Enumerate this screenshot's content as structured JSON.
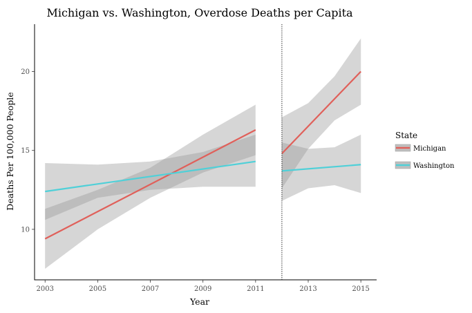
{
  "chart_data": {
    "type": "line",
    "title": "Michigan vs. Washington, Overdose Deaths per Capita",
    "xlabel": "Year",
    "ylabel": "Deaths Per 100,000 People",
    "xlim": [
      2002.6,
      2015.6
    ],
    "ylim": [
      6.8,
      23.0
    ],
    "x_ticks": [
      2003,
      2005,
      2007,
      2009,
      2011,
      2013,
      2015
    ],
    "y_ticks": [
      10,
      15,
      20
    ],
    "vline_x": 2012,
    "grid": false,
    "legend": {
      "title": "State",
      "position": "right"
    },
    "series": [
      {
        "name": "Michigan",
        "color": "#e0605a",
        "segments": [
          {
            "x": [
              2003,
              2011
            ],
            "y": [
              9.4,
              16.3
            ],
            "ci_x": [
              2003,
              2005,
              2007,
              2009,
              2011
            ],
            "ci_lower": [
              7.5,
              10.0,
              12.0,
              13.6,
              14.7
            ],
            "ci_upper": [
              11.3,
              12.5,
              13.9,
              16.0,
              17.9
            ]
          },
          {
            "x": [
              2012,
              2015
            ],
            "y": [
              14.8,
              20.0
            ],
            "ci_x": [
              2012,
              2013,
              2014,
              2015
            ],
            "ci_lower": [
              12.6,
              15.1,
              16.9,
              17.9
            ],
            "ci_upper": [
              17.1,
              18.0,
              19.7,
              22.1
            ]
          }
        ]
      },
      {
        "name": "Washington",
        "color": "#4fd0d8",
        "segments": [
          {
            "x": [
              2003,
              2011
            ],
            "y": [
              12.4,
              14.3
            ],
            "ci_x": [
              2003,
              2005,
              2007,
              2009,
              2011
            ],
            "ci_lower": [
              10.6,
              12.0,
              12.5,
              12.7,
              12.7
            ],
            "ci_upper": [
              14.2,
              14.1,
              14.3,
              14.9,
              16.0
            ]
          },
          {
            "x": [
              2012,
              2015
            ],
            "y": [
              13.7,
              14.1
            ],
            "ci_x": [
              2012,
              2013,
              2014,
              2015
            ],
            "ci_lower": [
              11.8,
              12.6,
              12.8,
              12.3
            ],
            "ci_upper": [
              15.5,
              15.1,
              15.2,
              16.0
            ]
          }
        ]
      }
    ]
  }
}
